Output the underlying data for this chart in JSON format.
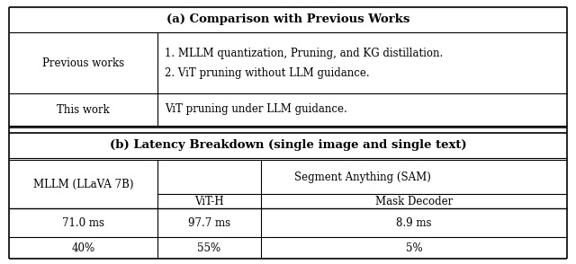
{
  "fig_width": 6.4,
  "fig_height": 2.94,
  "dpi": 100,
  "bg_color": "#ffffff",
  "section_a_title": "(a) Comparison with Previous Works",
  "section_b_title": "(b) Latency Breakdown (single image and single text)",
  "row_prev_label": "Previous works",
  "row_prev_line1": "1. MLLM quantization, Pruning, and KG distillation.",
  "row_prev_line2": "2. ViT pruning without LLM guidance.",
  "row_this_label": "This work",
  "row_this_content": "ViT pruning under LLM guidance.",
  "col1_label": "MLLM (LLaVA 7B)",
  "col2_header": "Segment Anything (SAM)",
  "col2a_label": "ViT-H",
  "col2b_label": "Mask Decoder",
  "val1_ms": "71.0 ms",
  "val2_ms": "97.7 ms",
  "val3_ms": "8.9 ms",
  "val1_pct": "40%",
  "val2_pct": "55%",
  "val3_pct": "5%",
  "line_color": "#000000",
  "text_color": "#000000",
  "font_size_title": 9.5,
  "font_size_body": 8.5
}
